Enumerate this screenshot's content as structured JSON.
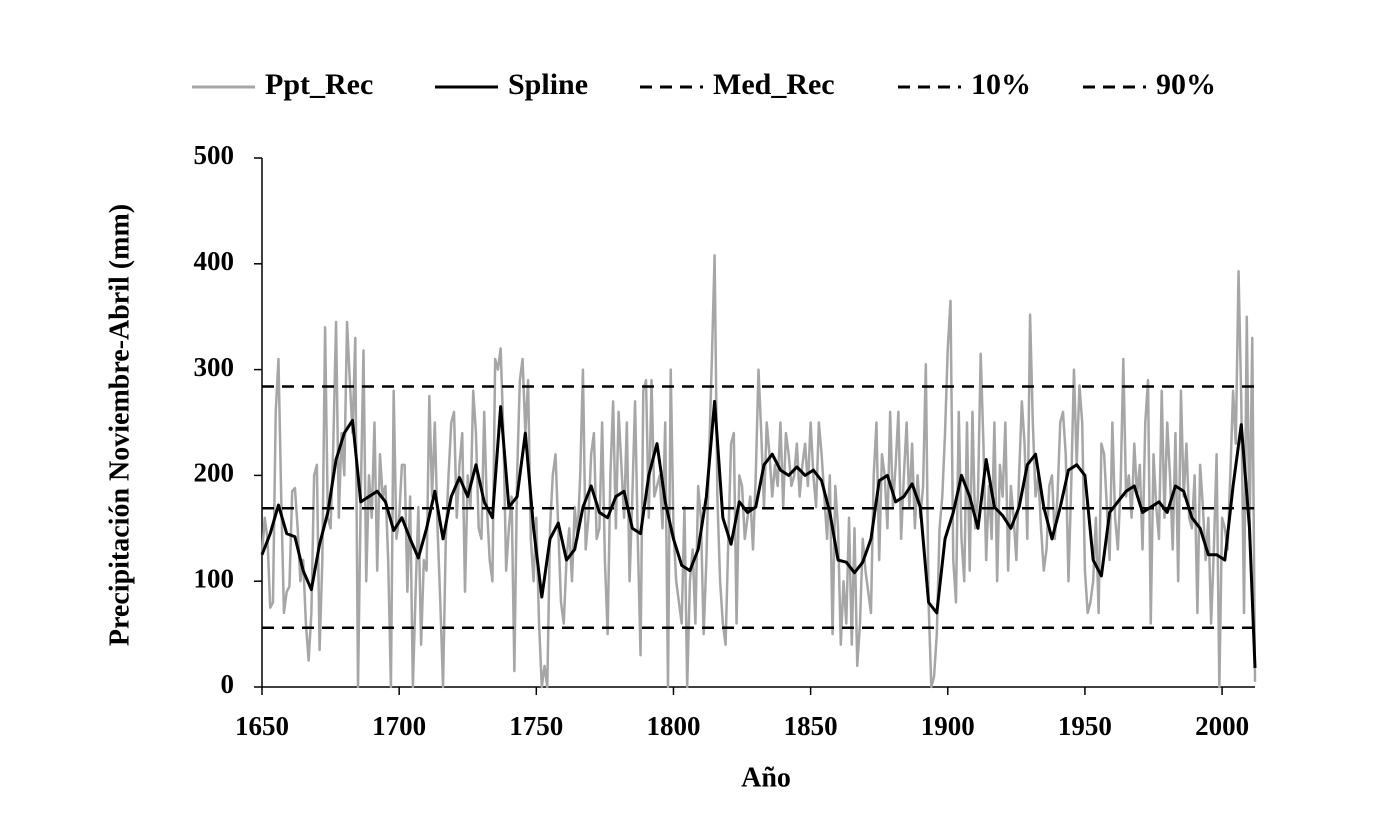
{
  "chart_data": {
    "type": "line",
    "xlabel": "Año",
    "ylabel": "Precipitación Noviembre-Abril (mm)",
    "xlim": [
      1650,
      2012
    ],
    "xticks": [
      1650,
      1700,
      1750,
      1800,
      1850,
      1900,
      1950,
      2000
    ],
    "ylim": [
      0,
      500
    ],
    "yticks": [
      0,
      100,
      200,
      300,
      400,
      500
    ],
    "grid": false,
    "legend": "top",
    "series": [
      {
        "name": "Ppt_Rec",
        "color": "#a6a6a6",
        "dashed": false,
        "x": [
          1650,
          1651,
          1652,
          1653,
          1654,
          1655,
          1656,
          1657,
          1658,
          1659,
          1660,
          1661,
          1662,
          1663,
          1664,
          1665,
          1666,
          1667,
          1668,
          1669,
          1670,
          1671,
          1672,
          1673,
          1674,
          1675,
          1676,
          1677,
          1678,
          1679,
          1680,
          1681,
          1682,
          1683,
          1684,
          1685,
          1686,
          1687,
          1688,
          1689,
          1690,
          1691,
          1692,
          1693,
          1694,
          1695,
          1696,
          1697,
          1698,
          1699,
          1700,
          1701,
          1702,
          1703,
          1704,
          1705,
          1706,
          1707,
          1708,
          1709,
          1710,
          1711,
          1712,
          1713,
          1714,
          1715,
          1716,
          1717,
          1718,
          1719,
          1720,
          1721,
          1722,
          1723,
          1724,
          1725,
          1726,
          1727,
          1728,
          1729,
          1730,
          1731,
          1732,
          1733,
          1734,
          1735,
          1736,
          1737,
          1738,
          1739,
          1740,
          1741,
          1742,
          1743,
          1744,
          1745,
          1746,
          1747,
          1748,
          1749,
          1750,
          1751,
          1752,
          1753,
          1754,
          1755,
          1756,
          1757,
          1758,
          1759,
          1760,
          1761,
          1762,
          1763,
          1764,
          1765,
          1766,
          1767,
          1768,
          1769,
          1770,
          1771,
          1772,
          1773,
          1774,
          1775,
          1776,
          1777,
          1778,
          1779,
          1780,
          1781,
          1782,
          1783,
          1784,
          1785,
          1786,
          1787,
          1788,
          1789,
          1790,
          1791,
          1792,
          1793,
          1794,
          1795,
          1796,
          1797,
          1798,
          1799,
          1800,
          1801,
          1802,
          1803,
          1804,
          1805,
          1806,
          1807,
          1808,
          1809,
          1810,
          1811,
          1812,
          1813,
          1814,
          1815,
          1816,
          1817,
          1818,
          1819,
          1820,
          1821,
          1822,
          1823,
          1824,
          1825,
          1826,
          1827,
          1828,
          1829,
          1830,
          1831,
          1832,
          1833,
          1834,
          1835,
          1836,
          1837,
          1838,
          1839,
          1840,
          1841,
          1842,
          1843,
          1844,
          1845,
          1846,
          1847,
          1848,
          1849,
          1850,
          1851,
          1852,
          1853,
          1854,
          1855,
          1856,
          1857,
          1858,
          1859,
          1860,
          1861,
          1862,
          1863,
          1864,
          1865,
          1866,
          1867,
          1868,
          1869,
          1870,
          1871,
          1872,
          1873,
          1874,
          1875,
          1876,
          1877,
          1878,
          1879,
          1880,
          1881,
          1882,
          1883,
          1884,
          1885,
          1886,
          1887,
          1888,
          1889,
          1890,
          1891,
          1892,
          1893,
          1894,
          1895,
          1896,
          1897,
          1898,
          1899,
          1900,
          1901,
          1902,
          1903,
          1904,
          1905,
          1906,
          1907,
          1908,
          1909,
          1910,
          1911,
          1912,
          1913,
          1914,
          1915,
          1916,
          1917,
          1918,
          1919,
          1920,
          1921,
          1922,
          1923,
          1924,
          1925,
          1926,
          1927,
          1928,
          1929,
          1930,
          1931,
          1932,
          1933,
          1934,
          1935,
          1936,
          1937,
          1938,
          1939,
          1940,
          1941,
          1942,
          1943,
          1944,
          1945,
          1946,
          1947,
          1948,
          1949,
          1950,
          1951,
          1952,
          1953,
          1954,
          1955,
          1956,
          1957,
          1958,
          1959,
          1960,
          1961,
          1962,
          1963,
          1964,
          1965,
          1966,
          1967,
          1968,
          1969,
          1970,
          1971,
          1972,
          1973,
          1974,
          1975,
          1976,
          1977,
          1978,
          1979,
          1980,
          1981,
          1982,
          1983,
          1984,
          1985,
          1986,
          1987,
          1988,
          1989,
          1990,
          1991,
          1992,
          1993,
          1994,
          1995,
          1996,
          1997,
          1998,
          1999,
          2000,
          2001,
          2002,
          2003,
          2004,
          2005,
          2006,
          2007,
          2008,
          2009,
          2010,
          2011,
          2012
        ],
        "values": [
          125,
          160,
          140,
          75,
          80,
          260,
          310,
          180,
          70,
          90,
          95,
          185,
          188,
          150,
          100,
          120,
          60,
          25,
          70,
          200,
          210,
          35,
          120,
          340,
          160,
          150,
          230,
          345,
          160,
          240,
          200,
          345,
          290,
          240,
          330,
          0,
          180,
          318,
          100,
          200,
          160,
          250,
          110,
          220,
          180,
          190,
          120,
          0,
          280,
          140,
          160,
          210,
          210,
          90,
          180,
          0,
          90,
          170,
          40,
          120,
          110,
          275,
          180,
          250,
          150,
          80,
          0,
          140,
          200,
          250,
          260,
          160,
          210,
          240,
          90,
          200,
          170,
          280,
          240,
          150,
          140,
          260,
          170,
          120,
          100,
          310,
          300,
          320,
          240,
          110,
          150,
          180,
          15,
          200,
          290,
          310,
          240,
          290,
          140,
          100,
          160,
          60,
          0,
          20,
          0,
          150,
          200,
          220,
          150,
          80,
          60,
          120,
          150,
          100,
          170,
          140,
          200,
          300,
          130,
          160,
          220,
          240,
          140,
          150,
          250,
          120,
          50,
          200,
          270,
          150,
          260,
          210,
          160,
          250,
          100,
          180,
          270,
          140,
          30,
          280,
          290,
          160,
          290,
          180,
          190,
          200,
          150,
          250,
          0,
          300,
          150,
          100,
          80,
          60,
          170,
          0,
          100,
          130,
          60,
          190,
          160,
          50,
          120,
          220,
          310,
          408,
          180,
          100,
          60,
          40,
          140,
          230,
          240,
          60,
          200,
          190,
          140,
          160,
          180,
          130,
          200,
          300,
          240,
          170,
          250,
          220,
          180,
          210,
          190,
          250,
          170,
          240,
          220,
          190,
          200,
          230,
          180,
          210,
          230,
          190,
          250,
          200,
          170,
          250,
          220,
          180,
          140,
          200,
          50,
          190,
          150,
          40,
          100,
          60,
          160,
          40,
          150,
          20,
          60,
          140,
          110,
          90,
          70,
          200,
          250,
          120,
          220,
          200,
          150,
          260,
          170,
          210,
          260,
          140,
          200,
          250,
          170,
          230,
          150,
          200,
          160,
          190,
          305,
          80,
          0,
          10,
          50,
          150,
          180,
          240,
          320,
          365,
          120,
          80,
          260,
          140,
          100,
          250,
          110,
          260,
          150,
          180,
          315,
          230,
          120,
          190,
          140,
          250,
          100,
          210,
          180,
          250,
          110,
          190,
          160,
          120,
          200,
          270,
          230,
          140,
          352,
          250,
          180,
          200,
          150,
          110,
          130,
          190,
          200,
          140,
          180,
          250,
          260,
          220,
          100,
          190,
          300,
          210,
          285,
          250,
          110,
          70,
          80,
          100,
          160,
          70,
          230,
          220,
          170,
          120,
          250,
          160,
          130,
          190,
          310,
          180,
          200,
          160,
          230,
          180,
          210,
          130,
          250,
          290,
          60,
          220,
          170,
          140,
          280,
          160,
          250,
          200,
          130,
          240,
          100,
          280,
          180,
          230,
          160,
          150,
          200,
          70,
          210,
          170,
          120,
          160,
          60,
          130,
          220,
          0,
          160,
          150,
          130,
          200,
          280,
          230,
          393,
          270,
          70,
          350,
          140,
          330,
          5
        ]
      },
      {
        "name": "Spline",
        "color": "#000000",
        "dashed": false,
        "x": [
          1650,
          1653,
          1656,
          1659,
          1662,
          1665,
          1668,
          1671,
          1674,
          1677,
          1680,
          1683,
          1686,
          1689,
          1692,
          1695,
          1698,
          1701,
          1704,
          1707,
          1710,
          1713,
          1716,
          1719,
          1722,
          1725,
          1728,
          1731,
          1734,
          1737,
          1740,
          1743,
          1746,
          1749,
          1752,
          1755,
          1758,
          1761,
          1764,
          1767,
          1770,
          1773,
          1776,
          1779,
          1782,
          1785,
          1788,
          1791,
          1794,
          1797,
          1800,
          1803,
          1806,
          1809,
          1812,
          1815,
          1818,
          1821,
          1824,
          1827,
          1830,
          1833,
          1836,
          1839,
          1842,
          1845,
          1848,
          1851,
          1854,
          1857,
          1860,
          1863,
          1866,
          1869,
          1872,
          1875,
          1878,
          1881,
          1884,
          1887,
          1890,
          1893,
          1896,
          1899,
          1902,
          1905,
          1908,
          1911,
          1914,
          1917,
          1920,
          1923,
          1926,
          1929,
          1932,
          1935,
          1938,
          1941,
          1944,
          1947,
          1950,
          1953,
          1956,
          1959,
          1962,
          1965,
          1968,
          1971,
          1974,
          1977,
          1980,
          1983,
          1986,
          1989,
          1992,
          1995,
          1998,
          2001,
          2004,
          2007,
          2010,
          2012
        ],
        "values": [
          125,
          145,
          172,
          145,
          142,
          110,
          92,
          135,
          165,
          215,
          240,
          252,
          175,
          180,
          185,
          175,
          148,
          160,
          140,
          122,
          150,
          185,
          140,
          180,
          198,
          180,
          210,
          175,
          160,
          265,
          170,
          180,
          240,
          150,
          85,
          140,
          155,
          120,
          130,
          170,
          190,
          165,
          160,
          180,
          185,
          150,
          145,
          200,
          230,
          175,
          140,
          115,
          110,
          130,
          180,
          270,
          160,
          135,
          175,
          165,
          170,
          210,
          220,
          205,
          200,
          208,
          200,
          205,
          195,
          165,
          120,
          118,
          108,
          118,
          140,
          195,
          200,
          175,
          180,
          192,
          170,
          80,
          70,
          140,
          165,
          200,
          180,
          150,
          215,
          170,
          162,
          150,
          170,
          210,
          220,
          170,
          140,
          170,
          205,
          210,
          200,
          120,
          105,
          165,
          175,
          185,
          190,
          165,
          170,
          175,
          165,
          190,
          185,
          160,
          150,
          125,
          125,
          120,
          190,
          248,
          150,
          18
        ]
      },
      {
        "name": "Med_Rec",
        "color": "#000000",
        "dashed": true,
        "x": [
          1650,
          2012
        ],
        "values": [
          169,
          169
        ]
      },
      {
        "name": "10%",
        "color": "#000000",
        "dashed": true,
        "x": [
          1650,
          2012
        ],
        "values": [
          56,
          56
        ]
      },
      {
        "name": "90%",
        "color": "#000000",
        "dashed": true,
        "x": [
          1650,
          2012
        ],
        "values": [
          284,
          284
        ]
      }
    ]
  }
}
